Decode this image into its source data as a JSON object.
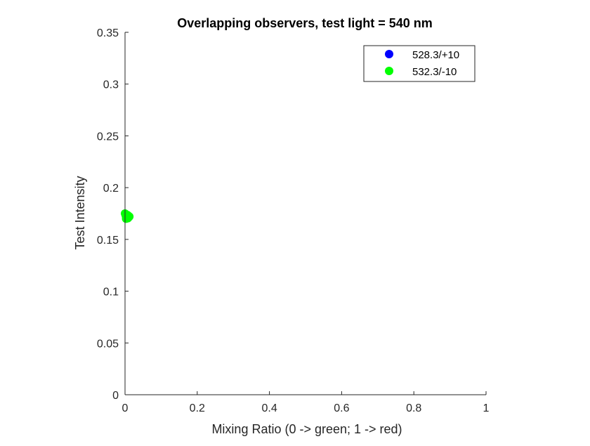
{
  "chart_data": {
    "type": "scatter",
    "title": "Overlapping observers, test light = 540 nm",
    "xlabel": "Mixing Ratio (0 -> green; 1 -> red)",
    "ylabel": "Test Intensity",
    "xlim": [
      0,
      1
    ],
    "ylim": [
      0,
      0.35
    ],
    "xticks": [
      0,
      0.2,
      0.4,
      0.6,
      0.8,
      1
    ],
    "xtick_labels": [
      "0",
      "0.2",
      "0.4",
      "0.6",
      "0.8",
      "1"
    ],
    "yticks": [
      0,
      0.05,
      0.1,
      0.15,
      0.2,
      0.25,
      0.3,
      0.35
    ],
    "ytick_labels": [
      "0",
      "0.05",
      "0.1",
      "0.15",
      "0.2",
      "0.25",
      "0.3",
      "0.35"
    ],
    "grid": false,
    "legend_position": "top-right",
    "series": [
      {
        "name": "528.3/+10",
        "color": "#0000ff",
        "marker": "filled-circle",
        "points": [
          {
            "x": 0.003,
            "y": 0.174
          },
          {
            "x": 0.006,
            "y": 0.172
          },
          {
            "x": 0.009,
            "y": 0.171
          }
        ]
      },
      {
        "name": "532.3/-10",
        "color": "#00ff00",
        "marker": "filled-circle",
        "points": [
          {
            "x": 0.0,
            "y": 0.175
          },
          {
            "x": 0.002,
            "y": 0.173
          },
          {
            "x": 0.004,
            "y": 0.172
          },
          {
            "x": 0.006,
            "y": 0.171
          },
          {
            "x": 0.008,
            "y": 0.1705
          },
          {
            "x": 0.01,
            "y": 0.1715
          },
          {
            "x": 0.012,
            "y": 0.172
          },
          {
            "x": 0.003,
            "y": 0.17
          },
          {
            "x": 0.007,
            "y": 0.1735
          },
          {
            "x": 0.01,
            "y": 0.1725
          }
        ]
      }
    ]
  }
}
